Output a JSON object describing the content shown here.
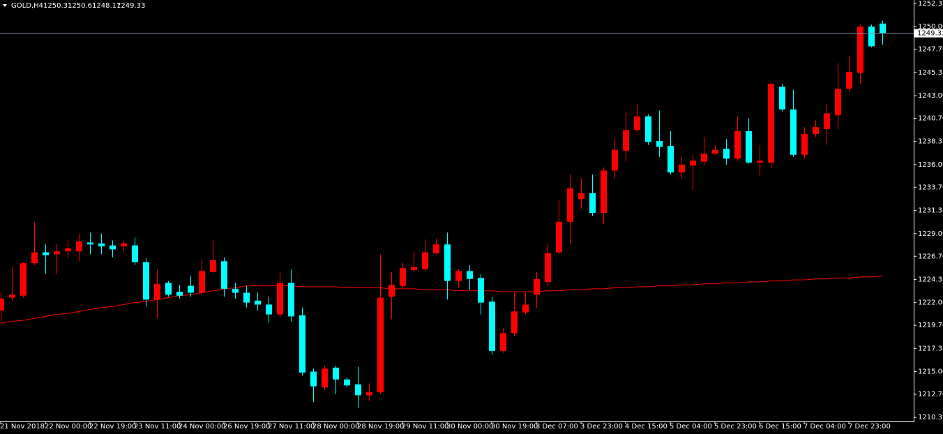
{
  "chart_data": {
    "type": "candlestick",
    "symbol": "GOLD,H4",
    "categories": [
      "21 Nov 2018",
      null,
      null,
      null,
      "22 Nov 00:00",
      null,
      null,
      null,
      "22 Nov 19:00",
      null,
      null,
      null,
      "23 Nov 11:00",
      null,
      null,
      null,
      "24 Nov 00:00",
      null,
      null,
      null,
      "26 Nov 19:00",
      null,
      null,
      null,
      "27 Nov 11:00",
      null,
      null,
      null,
      "28 Nov 00:00",
      null,
      null,
      null,
      "28 Nov 19:00",
      null,
      null,
      null,
      "29 Nov 11:00",
      null,
      null,
      null,
      "30 Nov 00:00",
      null,
      null,
      null,
      "30 Nov 19:00",
      null,
      null,
      null,
      "3 Dec 07:00",
      null,
      null,
      null,
      "3 Dec 23:00",
      null,
      null,
      null,
      "4 Dec 15:00",
      null,
      null,
      null,
      "5 Dec 04:00",
      null,
      null,
      null,
      "5 Dec 23:00",
      null,
      null,
      null,
      "6 Dec 15:00",
      null,
      null,
      null,
      "7 Dec 04:00",
      null,
      null,
      null,
      "7 Dec 23:00",
      null,
      null,
      null
    ],
    "open": [
      1221.2,
      1222.5,
      1222.7,
      1226.0,
      1227.1,
      1226.9,
      1227.2,
      1227.2,
      1228.1,
      1228.0,
      1227.8,
      1227.7,
      1227.8,
      1226.1,
      1222.3,
      1224.0,
      1223.1,
      1223.7,
      1223.0,
      1225.1,
      1226.2,
      1223.4,
      1223.0,
      1222.2,
      1221.8,
      1220.8,
      1224.0,
      1220.7,
      1215.0,
      1213.4,
      1215.4,
      1214.2,
      1213.7,
      1212.6,
      1212.9,
      1222.6,
      1223.7,
      1225.3,
      1225.4,
      1227.0,
      1227.9,
      1224.2,
      1225.2,
      1224.5,
      1222.1,
      1217.1,
      1218.9,
      1221.0,
      1222.8,
      1224.1,
      1227.1,
      1230.2,
      1232.5,
      1233.1,
      1231.1,
      1235.4,
      1237.4,
      1239.5,
      1240.9,
      1238.4,
      1237.9,
      1235.2,
      1235.9,
      1236.3,
      1237.1,
      1237.6,
      1236.6,
      1239.4,
      1236.2,
      1236.2,
      1243.9,
      1241.6,
      1237.0,
      1239.1,
      1239.6,
      1241.0,
      1243.7,
      1245.3,
      1250.0,
      1250.31
    ],
    "high": [
      1223.0,
      1225.6,
      1226.1,
      1230.2,
      1227.9,
      1227.9,
      1228.3,
      1229.0,
      1229.1,
      1229.0,
      1228.3,
      1228.3,
      1228.6,
      1226.5,
      1225.4,
      1224.2,
      1223.8,
      1224.7,
      1226.4,
      1228.3,
      1226.6,
      1224.0,
      1223.7,
      1223.0,
      1222.6,
      1225.1,
      1225.4,
      1221.5,
      1215.3,
      1215.6,
      1215.6,
      1214.4,
      1215.5,
      1213.8,
      1226.9,
      1225.1,
      1226.0,
      1227.2,
      1228.4,
      1228.5,
      1229.1,
      1225.4,
      1225.8,
      1224.9,
      1222.6,
      1219.4,
      1223.0,
      1223.0,
      1225.1,
      1227.9,
      1232.4,
      1235.0,
      1234.6,
      1235.0,
      1235.7,
      1238.6,
      1241.4,
      1242.1,
      1241.1,
      1241.5,
      1239.4,
      1236.8,
      1237.0,
      1238.8,
      1238.0,
      1238.6,
      1240.9,
      1240.7,
      1238.0,
      1244.4,
      1244.2,
      1243.6,
      1239.8,
      1240.5,
      1242.1,
      1246.3,
      1247.0,
      1250.2,
      1250.2,
      1250.61
    ],
    "low": [
      1220.1,
      1222.2,
      1222.5,
      1225.8,
      1224.9,
      1224.9,
      1226.5,
      1226.2,
      1226.9,
      1226.9,
      1226.6,
      1227.2,
      1225.8,
      1221.6,
      1220.4,
      1222.6,
      1222.4,
      1222.6,
      1222.8,
      1225.0,
      1222.6,
      1222.4,
      1221.5,
      1221.2,
      1220.0,
      1220.5,
      1220.1,
      1214.6,
      1211.9,
      1213.1,
      1212.7,
      1213.4,
      1211.3,
      1212.0,
      1212.7,
      1220.3,
      1223.5,
      1225.1,
      1225.2,
      1226.9,
      1222.3,
      1223.5,
      1223.3,
      1220.8,
      1216.7,
      1216.9,
      1218.6,
      1220.8,
      1221.5,
      1223.7,
      1226.9,
      1227.9,
      1231.5,
      1230.8,
      1230.0,
      1234.6,
      1236.3,
      1239.3,
      1238.0,
      1236.8,
      1235.0,
      1234.6,
      1233.4,
      1235.9,
      1237.0,
      1236.0,
      1236.4,
      1236.1,
      1234.9,
      1235.7,
      1241.4,
      1236.8,
      1236.6,
      1238.8,
      1238.0,
      1239.6,
      1243.4,
      1244.2,
      1247.9,
      1248.17
    ],
    "close": [
      1222.4,
      1222.8,
      1226.0,
      1227.1,
      1226.8,
      1227.2,
      1227.5,
      1228.2,
      1227.9,
      1227.7,
      1227.4,
      1228.0,
      1226.1,
      1222.3,
      1223.9,
      1222.8,
      1222.7,
      1223.0,
      1225.2,
      1226.3,
      1223.4,
      1223.0,
      1222.0,
      1221.8,
      1220.8,
      1224.0,
      1220.6,
      1214.9,
      1213.5,
      1215.3,
      1214.2,
      1213.6,
      1212.6,
      1212.9,
      1222.5,
      1223.8,
      1225.5,
      1225.6,
      1227.1,
      1227.9,
      1224.2,
      1225.2,
      1224.4,
      1222.0,
      1217.1,
      1218.9,
      1221.1,
      1221.8,
      1224.4,
      1227.0,
      1230.2,
      1233.6,
      1233.1,
      1231.1,
      1235.4,
      1237.5,
      1239.5,
      1240.9,
      1238.3,
      1237.8,
      1235.2,
      1236.0,
      1236.4,
      1237.1,
      1237.5,
      1236.6,
      1239.4,
      1236.2,
      1236.4,
      1244.2,
      1241.6,
      1237.0,
      1239.1,
      1239.8,
      1241.2,
      1243.7,
      1245.4,
      1250.0,
      1248.0,
      1249.33
    ],
    "up_color": "#ff0000",
    "down_color": "#00ffff",
    "moving_average": {
      "color": "#ff0000",
      "values": [
        1219.9,
        1220.1,
        1220.2,
        1220.4,
        1220.6,
        1220.8,
        1220.9,
        1221.1,
        1221.3,
        1221.5,
        1221.6,
        1221.8,
        1222.0,
        1222.1,
        1222.3,
        1222.5,
        1222.7,
        1222.8,
        1223.0,
        1223.2,
        1223.4,
        1223.5,
        1223.7,
        1223.7,
        1223.7,
        1223.7,
        1223.7,
        1223.6,
        1223.6,
        1223.6,
        1223.6,
        1223.5,
        1223.5,
        1223.5,
        1223.5,
        1223.4,
        1223.4,
        1223.4,
        1223.3,
        1223.3,
        1223.3,
        1223.2,
        1223.2,
        1223.2,
        1223.2,
        1223.1,
        1223.1,
        1223.1,
        1223.1,
        1223.2,
        1223.2,
        1223.3,
        1223.3,
        1223.4,
        1223.4,
        1223.5,
        1223.5,
        1223.6,
        1223.6,
        1223.7,
        1223.7,
        1223.8,
        1223.8,
        1223.9,
        1223.9,
        1224.0,
        1224.0,
        1224.1,
        1224.1,
        1224.2,
        1224.2,
        1224.3,
        1224.3,
        1224.4,
        1224.4,
        1224.5,
        1224.5,
        1224.6,
        1224.6,
        1224.7
      ]
    },
    "price_line_color": "#7f93b0",
    "ylim": [
      1209.94,
      1252.7
    ],
    "yticks": [
      1210.35,
      {
        "value": 1212.7,
        "label": "1212.70"
      },
      {
        "value": 1215,
        "label": "1215.00"
      },
      1217.35,
      {
        "value": 1219.7,
        "label": "1219.70"
      },
      {
        "value": 1222,
        "label": "1222.00"
      },
      1224.35,
      {
        "value": 1226.7,
        "label": "1226.70"
      },
      {
        "value": 1229,
        "label": "1229.00"
      },
      1231.35,
      {
        "value": 1233.7,
        "label": "1233.70"
      },
      {
        "value": 1236,
        "label": "1236.00"
      },
      1238.35,
      {
        "value": 1240.7,
        "label": "1240.70"
      },
      {
        "value": 1243,
        "label": "1243.00"
      },
      1245.35,
      {
        "value": 1247.7,
        "label": "1247.70"
      },
      {
        "value": 1250,
        "label": "1250.00"
      },
      1252.35
    ]
  }
}
